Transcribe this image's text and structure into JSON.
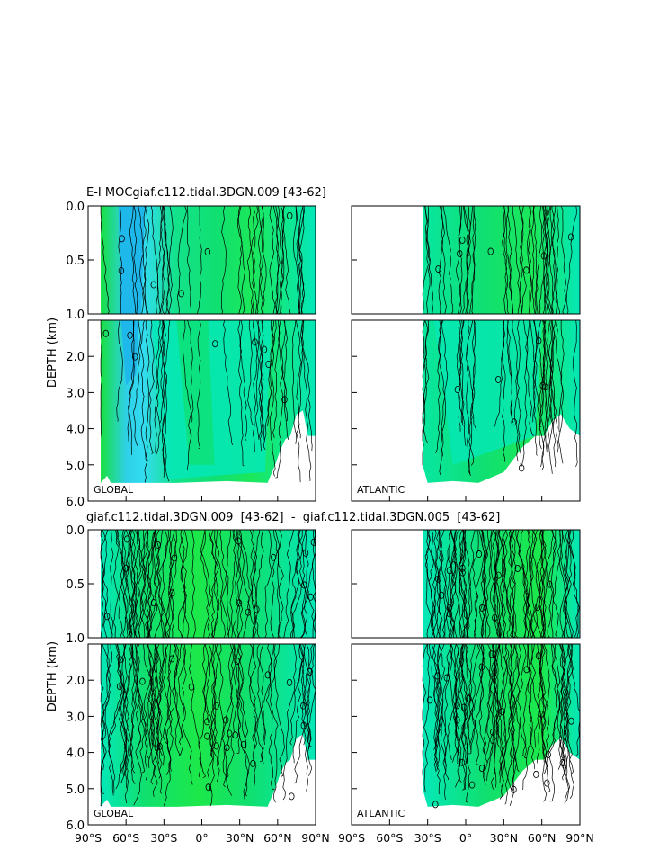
{
  "chart_data": {
    "type": "heatmap",
    "titles": {
      "top": "E-I MOCgiaf.c112.tidal.3DGN.009  [43-62]",
      "bottom": "giaf.c112.tidal.3DGN.009  [43-62]  -  giaf.c112.tidal.3DGN.005  [43-62]"
    },
    "ylabel": "DEPTH (km)",
    "x_ticks": [
      "90°S",
      "60°S",
      "30°S",
      "0°",
      "30°N",
      "60°N",
      "90°N"
    ],
    "x_range": [
      -90,
      90
    ],
    "upper_ticks": [
      "0.0",
      "0.5",
      "1.0"
    ],
    "upper_range": [
      0,
      1
    ],
    "lower_ticks": [
      "2.0",
      "3.0",
      "4.0",
      "5.0",
      "6.0"
    ],
    "lower_range": [
      1,
      6
    ],
    "basin_labels": {
      "global": "GLOBAL",
      "atlantic": "ATLANTIC"
    },
    "colors": {
      "deep_negative": "#1fb8ea",
      "negative": "#33dcf0",
      "near_zero": "#05e7b8",
      "positive": "#10e070",
      "strong_positive": "#1eea3c"
    },
    "panels": [
      {
        "basin": "global",
        "section": "top"
      },
      {
        "basin": "atlantic",
        "section": "top"
      },
      {
        "basin": "global",
        "section": "bottom"
      },
      {
        "basin": "atlantic",
        "section": "bottom"
      }
    ]
  }
}
